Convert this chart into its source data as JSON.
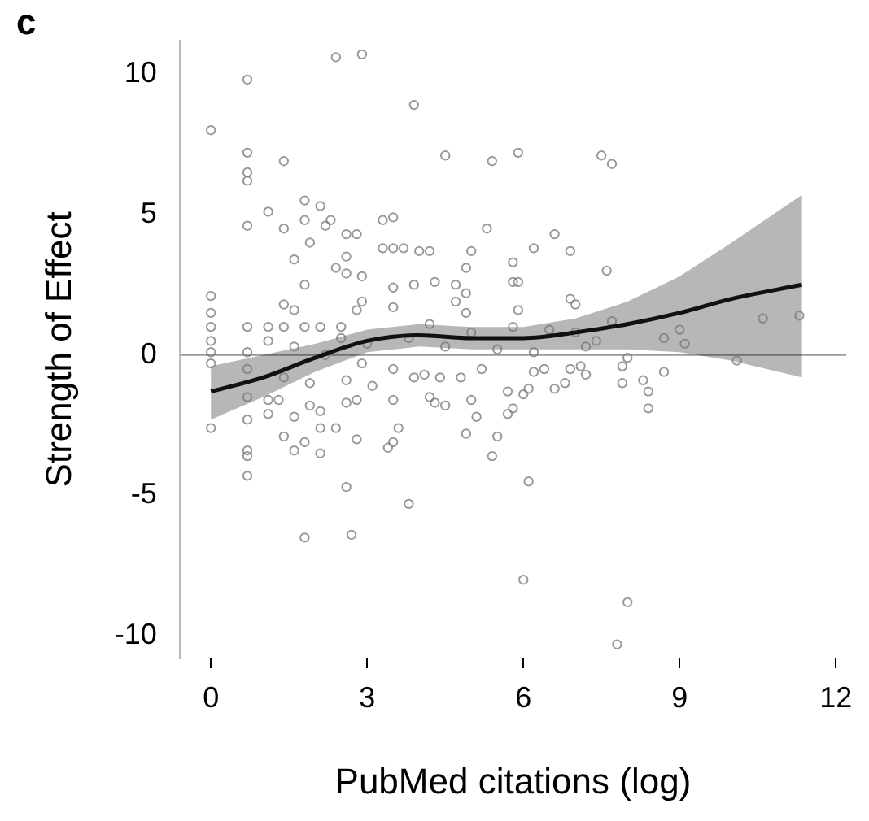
{
  "chart_data": {
    "type": "scatter",
    "title": "c",
    "xlabel": "PubMed citations (log)",
    "ylabel": "Strength of Effect",
    "xlim": [
      -0.6,
      12.2
    ],
    "ylim": [
      -10.8,
      11.2
    ],
    "xticks": [
      0,
      3,
      6,
      9,
      12
    ],
    "yticks": [
      -10,
      -5,
      0,
      5,
      10
    ],
    "grid": false,
    "legend": false,
    "marker": "circle",
    "ref_lines": [
      {
        "axis": "y",
        "value": 0,
        "color": "#999999"
      }
    ],
    "series": [
      {
        "color": "#777777",
        "x": [
          0,
          0.7,
          2.4,
          2.9,
          3.9,
          0.7,
          0.7,
          0.7,
          1.4,
          4.5,
          5.4,
          5.9,
          1.1,
          0.7,
          1.8,
          2.1,
          1.8,
          2.2,
          1.4,
          2.3,
          3.3,
          3.5,
          5.3,
          1.9,
          2.6,
          2.8,
          3.3,
          3.5,
          3.7,
          4.0,
          4.2,
          5.0,
          1.6,
          2.6,
          2.4,
          2.6,
          2.9,
          4.9,
          5.8,
          1.8,
          3.5,
          3.9,
          4.3,
          4.7,
          4.9,
          5.8,
          4.7,
          2.9,
          2.8,
          3.5,
          4.9,
          0,
          0,
          1.4,
          1.6,
          0,
          0.7,
          1.1,
          1.4,
          1.8,
          2.1,
          2.5,
          0,
          0.7,
          7.5,
          7.7,
          6.6,
          6.2,
          6.9,
          7.6,
          5.9,
          6.9,
          7.0,
          5.9,
          7.7,
          9.0,
          8.7,
          9.1,
          10.6,
          11.3,
          8.0,
          10.1,
          7.2,
          7.4,
          0,
          0.7,
          0.7,
          0.7,
          0.7,
          1.1,
          1.4,
          1.6,
          1.8,
          2.1,
          1.6,
          1.9,
          2.1,
          2.1,
          2.4,
          2.6,
          2.8,
          2.6,
          1.8,
          2.7,
          3.8,
          3.4,
          3.5,
          3.6,
          3.5,
          4.2,
          4.3,
          4.5,
          4.9,
          5.1,
          5.0,
          5.5,
          5.4,
          5.7,
          5.7,
          3.1,
          2.8,
          1.3,
          1.1,
          0.7,
          1.9,
          2.6,
          3.9,
          4.1,
          4.4,
          4.8,
          5.2,
          3.5,
          2.9,
          6.1,
          6.0,
          8.0,
          7.8,
          8.4,
          8.4,
          8.3,
          8.7,
          7.9,
          7.9,
          5.8,
          6.0,
          6.1,
          6.6,
          6.8,
          7.1,
          7.2,
          6.9,
          6.4,
          6.2,
          4.5,
          5.0,
          5.5,
          6.2,
          3.8,
          4.2,
          6.5,
          5.8,
          7.0,
          3.0,
          2.2,
          1.6,
          1.1,
          0,
          0,
          0.7,
          1.4,
          2.5
        ],
        "values": [
          8.0,
          9.8,
          10.6,
          10.7,
          8.9,
          7.2,
          6.5,
          6.2,
          6.9,
          7.1,
          6.9,
          7.2,
          5.1,
          4.6,
          5.5,
          5.3,
          4.8,
          4.6,
          4.5,
          4.8,
          4.8,
          4.9,
          4.5,
          4.0,
          4.3,
          4.3,
          3.8,
          3.8,
          3.8,
          3.7,
          3.7,
          3.7,
          3.4,
          3.5,
          3.1,
          2.9,
          2.8,
          3.1,
          3.3,
          2.5,
          2.4,
          2.5,
          2.6,
          2.5,
          2.2,
          2.6,
          1.9,
          1.9,
          1.6,
          1.7,
          1.5,
          2.1,
          1.5,
          1.8,
          1.6,
          1.0,
          1.0,
          1.0,
          1.0,
          1.0,
          1.0,
          1.0,
          0.1,
          0.1,
          7.1,
          6.8,
          4.3,
          3.8,
          3.7,
          3.0,
          2.6,
          2.0,
          1.8,
          1.6,
          1.2,
          0.9,
          0.6,
          0.4,
          1.3,
          1.4,
          -0.1,
          -0.2,
          0.3,
          0.5,
          -2.6,
          -2.3,
          -3.4,
          -3.6,
          -4.3,
          -2.1,
          -2.9,
          -3.4,
          -3.1,
          -3.5,
          -2.2,
          -1.8,
          -2.0,
          -2.6,
          -2.6,
          -1.7,
          -3.0,
          -4.7,
          -6.5,
          -6.4,
          -5.3,
          -3.3,
          -3.1,
          -2.6,
          -1.6,
          -1.5,
          -1.7,
          -1.8,
          -2.8,
          -2.2,
          -1.6,
          -2.9,
          -3.6,
          -1.3,
          -2.1,
          -1.1,
          -1.6,
          -1.6,
          -1.6,
          -1.5,
          -1.0,
          -0.9,
          -0.8,
          -0.7,
          -0.8,
          -0.8,
          -0.5,
          -0.5,
          -0.3,
          -4.5,
          -8.0,
          -8.8,
          -10.3,
          -1.9,
          -1.3,
          -0.9,
          -0.6,
          -0.4,
          -1.0,
          -1.9,
          -1.4,
          -1.2,
          -1.2,
          -1.0,
          -0.4,
          -0.7,
          -0.5,
          -0.5,
          -0.6,
          0.3,
          0.8,
          0.2,
          0.1,
          0.6,
          1.1,
          0.9,
          1.0,
          0.8,
          0.4,
          0.0,
          0.3,
          0.5,
          0.5,
          -0.3,
          -0.5,
          -0.8,
          0.6
        ]
      },
      {
        "type": "line",
        "color": "#111111",
        "marker": "none",
        "line_style": "solid",
        "x": [
          0,
          1,
          2,
          3,
          4,
          5,
          6,
          7,
          8,
          9,
          10,
          11.35
        ],
        "values": [
          -1.3,
          -0.8,
          -0.1,
          0.5,
          0.7,
          0.6,
          0.6,
          0.8,
          1.1,
          1.5,
          2.0,
          2.5
        ],
        "lower": [
          -2.3,
          -1.5,
          -0.6,
          0.1,
          0.3,
          0.2,
          0.2,
          0.2,
          0.2,
          0.1,
          -0.2,
          -0.8
        ],
        "upper": [
          -0.4,
          0,
          0.4,
          0.9,
          1.1,
          1.0,
          1.0,
          1.3,
          1.9,
          2.8,
          4.0,
          5.7
        ]
      }
    ]
  }
}
